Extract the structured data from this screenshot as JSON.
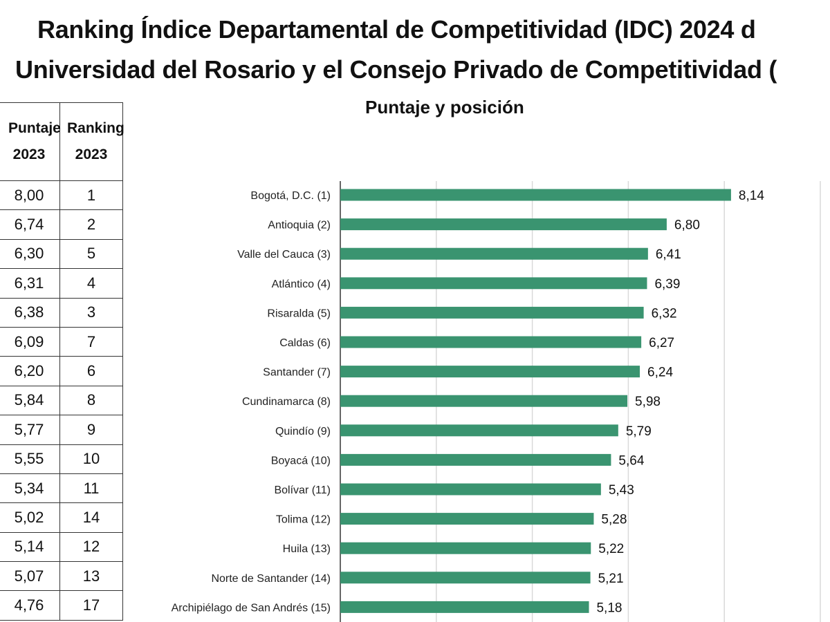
{
  "title_line1": "Ranking Índice Departamental de Competitividad (IDC) 2024 d",
  "title_line2": "Universidad del Rosario y el Consejo Privado de Competitividad (",
  "table": {
    "headers": [
      "Puntaje 2023",
      "Ranking 2023"
    ],
    "rows": [
      [
        "8,00",
        "1"
      ],
      [
        "6,74",
        "2"
      ],
      [
        "6,30",
        "5"
      ],
      [
        "6,31",
        "4"
      ],
      [
        "6,38",
        "3"
      ],
      [
        "6,09",
        "7"
      ],
      [
        "6,20",
        "6"
      ],
      [
        "5,84",
        "8"
      ],
      [
        "5,77",
        "9"
      ],
      [
        "5,55",
        "10"
      ],
      [
        "5,34",
        "11"
      ],
      [
        "5,02",
        "14"
      ],
      [
        "5,14",
        "12"
      ],
      [
        "5,07",
        "13"
      ],
      [
        "4,76",
        "17"
      ]
    ]
  },
  "chart_data": {
    "type": "bar",
    "orientation": "horizontal",
    "title": "Puntaje y posición",
    "categories": [
      "Bogotá, D.C. (1)",
      "Antioquia (2)",
      "Valle del Cauca (3)",
      "Atlántico (4)",
      "Risaralda (5)",
      "Caldas (6)",
      "Santander (7)",
      "Cundinamarca (8)",
      "Quindío (9)",
      "Boyacá (10)",
      "Bolívar (11)",
      "Tolima (12)",
      "Huila (13)",
      "Norte de Santander (14)",
      "Archipiélago de San Andrés (15)"
    ],
    "values": [
      8.14,
      6.8,
      6.41,
      6.39,
      6.32,
      6.27,
      6.24,
      5.98,
      5.79,
      5.64,
      5.43,
      5.28,
      5.22,
      5.21,
      5.18
    ],
    "data_labels": [
      "8,14",
      "6,80",
      "6,41",
      "6,39",
      "6,32",
      "6,27",
      "6,24",
      "5,98",
      "5,79",
      "5,64",
      "5,43",
      "5,28",
      "5,22",
      "5,21",
      "5,18"
    ],
    "xlim": [
      0,
      10
    ],
    "grid_step": 2,
    "grid": true,
    "bar_color": "#3a9470"
  }
}
